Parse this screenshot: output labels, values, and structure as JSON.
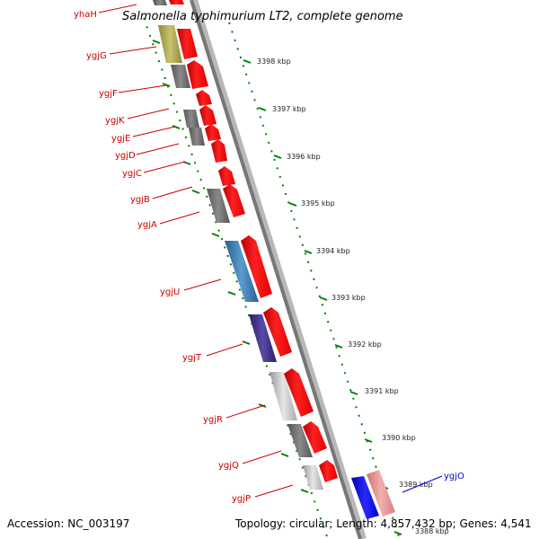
{
  "title": "Salmonella typhimurium LT2, complete genome",
  "footer": {
    "accession": "Accession: NC_003197",
    "topology": "Topology: circular; Length: 4,857,432 bp; Genes: 4,541"
  },
  "tick_labels": [
    "3398 kbp",
    "3397 kbp",
    "3396 kbp",
    "3395 kbp",
    "3394 kbp",
    "3393 kbp",
    "3392 kbp",
    "3391 kbp",
    "3390 kbp",
    "3389 kbp",
    "3388 kbp"
  ],
  "gene_labels": [
    "yhaH",
    "ygjG",
    "ygjF",
    "ygjK",
    "ygjE",
    "ygjD",
    "ygjC",
    "ygjB",
    "ygjA",
    "ygjU",
    "ygjT",
    "ygjR",
    "ygjQ",
    "ygjP",
    "ygjO"
  ],
  "colors": {
    "red": "#ff0000",
    "label_red": "#cc0000",
    "label_blue": "#0000cc",
    "tick_green": "#008000"
  }
}
